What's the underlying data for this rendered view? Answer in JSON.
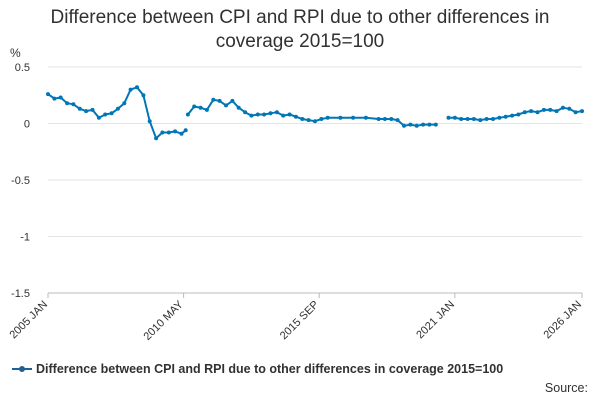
{
  "title_line1": "Difference between CPI and RPI due to other differences in",
  "title_line2": "coverage 2015=100",
  "source_label": "Source:",
  "colors": {
    "series": "#0076b7",
    "grid": "#e3e3e3",
    "text": "#323132"
  },
  "chart_data": {
    "type": "line",
    "title": "Difference between CPI and RPI due to other differences in coverage 2015=100",
    "ylabel": "%",
    "xlabel": "",
    "ylim": [
      -1.5,
      0.5
    ],
    "yticks": [
      0.5,
      0,
      -0.5,
      -1,
      -1.5
    ],
    "ytick_labels": [
      "0.5",
      "0",
      "-0.5",
      "-1",
      "-1.5"
    ],
    "xlim": [
      2005.0,
      2026.0
    ],
    "xticks": [
      2005.0,
      2010.333,
      2015.667,
      2021.0,
      2026.0
    ],
    "xtick_labels": [
      "2005 JAN",
      "2010 MAY",
      "2015 SEP",
      "2021 JAN",
      "2026 JAN"
    ],
    "legend": "top-left below chart",
    "series": [
      {
        "name": "Difference between CPI and RPI due to other differences in coverage 2015=100",
        "segments": [
          {
            "x": [
              2005.0,
              2005.25,
              2005.5,
              2005.75,
              2006.0,
              2006.25,
              2006.5,
              2006.75,
              2007.0,
              2007.25,
              2007.5,
              2007.75,
              2008.0,
              2008.25,
              2008.5,
              2008.75,
              2009.0,
              2009.25,
              2009.5,
              2009.75,
              2010.0,
              2010.25,
              2010.417
            ],
            "y": [
              0.26,
              0.22,
              0.23,
              0.18,
              0.17,
              0.13,
              0.11,
              0.12,
              0.05,
              0.08,
              0.09,
              0.13,
              0.18,
              0.3,
              0.32,
              0.25,
              0.02,
              -0.13,
              -0.08,
              -0.08,
              -0.07,
              -0.09,
              -0.06
            ]
          },
          {
            "x": [
              2010.5,
              2010.75,
              2011.0,
              2011.25,
              2011.5,
              2011.75,
              2012.0,
              2012.25,
              2012.5,
              2012.75,
              2013.0,
              2013.25,
              2013.5,
              2013.75,
              2014.0,
              2014.25,
              2014.5,
              2014.75,
              2015.0,
              2015.25,
              2015.5,
              2015.75,
              2016.0,
              2016.5,
              2017.0,
              2017.5,
              2018.0,
              2018.25,
              2018.5,
              2018.75,
              2019.0,
              2019.25,
              2019.5,
              2019.75,
              2020.0,
              2020.25
            ],
            "y": [
              0.08,
              0.15,
              0.14,
              0.12,
              0.21,
              0.2,
              0.16,
              0.2,
              0.14,
              0.1,
              0.07,
              0.08,
              0.08,
              0.09,
              0.1,
              0.07,
              0.08,
              0.06,
              0.04,
              0.03,
              0.02,
              0.04,
              0.05,
              0.05,
              0.05,
              0.05,
              0.04,
              0.04,
              0.04,
              0.03,
              -0.02,
              -0.01,
              -0.02,
              -0.01,
              -0.01,
              -0.01
            ]
          },
          {
            "x": [
              2020.75,
              2021.0,
              2021.25,
              2021.5,
              2021.75,
              2022.0,
              2022.25,
              2022.5,
              2022.75,
              2023.0,
              2023.25,
              2023.5,
              2023.75,
              2024.0,
              2024.25,
              2024.5,
              2024.75,
              2025.0,
              2025.25,
              2025.5,
              2025.75,
              2026.0
            ],
            "y": [
              0.05,
              0.05,
              0.04,
              0.04,
              0.04,
              0.03,
              0.04,
              0.04,
              0.05,
              0.06,
              0.07,
              0.08,
              0.1,
              0.11,
              0.1,
              0.12,
              0.12,
              0.11,
              0.14,
              0.13,
              0.1,
              0.11
            ]
          }
        ]
      }
    ]
  }
}
